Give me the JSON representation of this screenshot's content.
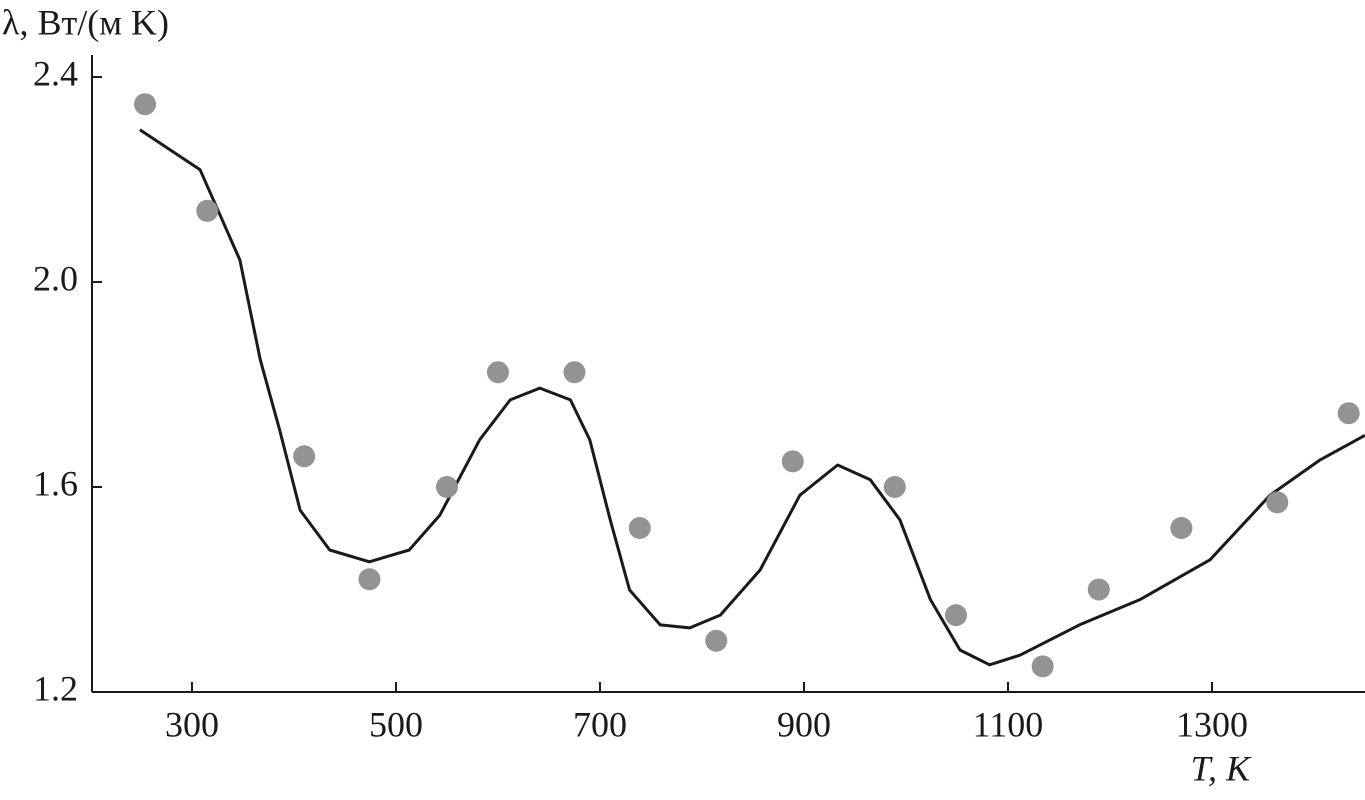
{
  "chart_data": {
    "type": "scatter",
    "y_label": "λ, Вт/(м K)",
    "x_label": "T, K",
    "xlim": [
      202,
      1450
    ],
    "ylim": [
      1.2,
      2.443
    ],
    "xticks": [
      300,
      500,
      700,
      900,
      1100,
      1300
    ],
    "yticks": [
      2.4,
      {
        "value": 2,
        "label": "2.0"
      },
      1.6,
      1.2
    ],
    "points": {
      "color": "#939393",
      "x": [
        254,
        315,
        410,
        474,
        550,
        600,
        675,
        739,
        814,
        889,
        989,
        1049,
        1134,
        1189,
        1270,
        1364,
        1434
      ],
      "y": [
        2.347,
        2.139,
        1.66,
        1.42,
        1.6,
        1.824,
        1.824,
        1.52,
        1.3,
        1.65,
        1.6,
        1.35,
        1.25,
        1.4,
        1.52,
        1.57,
        1.744
      ]
    },
    "curve": {
      "color": "#1a1a1a",
      "x": [
        249,
        308,
        347,
        367,
        386,
        406,
        435,
        474,
        513,
        543,
        582,
        612,
        641,
        671,
        690,
        710,
        729,
        759,
        788,
        818,
        857,
        896,
        933,
        965,
        994,
        1024,
        1053,
        1082,
        1112,
        1170,
        1229,
        1298,
        1357,
        1406,
        1450
      ],
      "y": [
        2.297,
        2.219,
        2.043,
        1.848,
        1.711,
        1.555,
        1.477,
        1.454,
        1.477,
        1.545,
        1.692,
        1.77,
        1.793,
        1.77,
        1.692,
        1.536,
        1.399,
        1.331,
        1.325,
        1.35,
        1.438,
        1.584,
        1.643,
        1.614,
        1.536,
        1.38,
        1.282,
        1.253,
        1.272,
        1.331,
        1.38,
        1.458,
        1.584,
        1.653,
        1.701
      ]
    }
  }
}
